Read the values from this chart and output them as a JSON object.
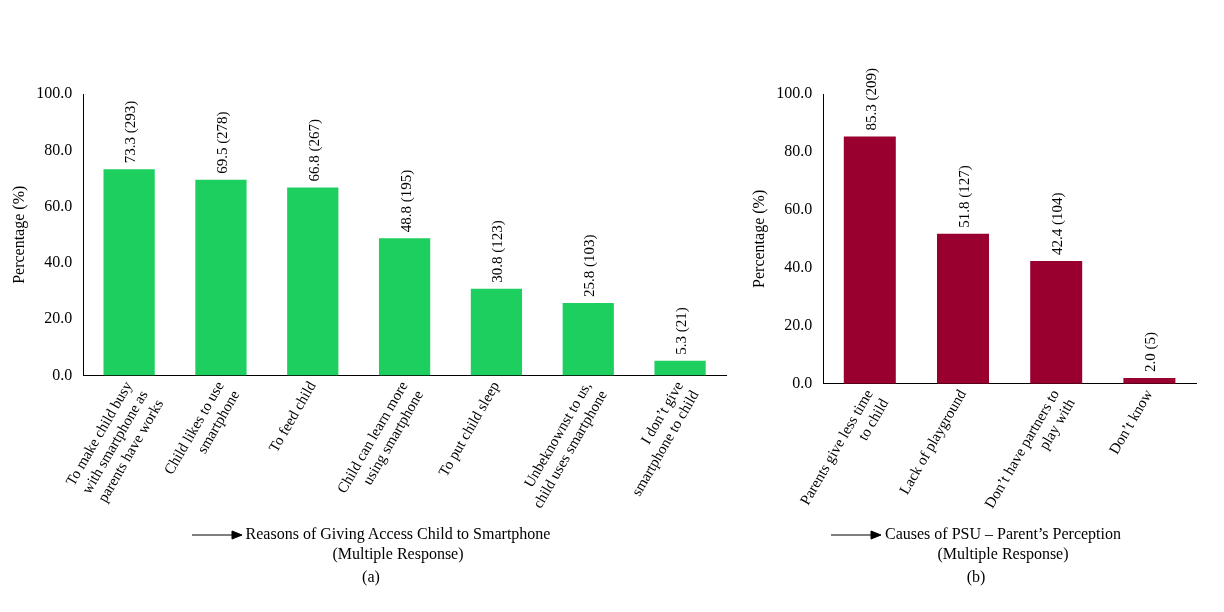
{
  "chart_data": [
    {
      "type": "bar",
      "xlabel": "Reasons of Giving Access Child to Smartphone (Multiple Response)",
      "ylabel": "Percentage (%)",
      "categories": [
        "To make child busy with smartphone as parents have works",
        "Child likes to use smartphone",
        "To feed child",
        "Child can learn more using smartphone",
        "To put child sleep",
        "Unbeknownst to us, child uses smartphone",
        "I don’t give smartphone to child"
      ],
      "values": [
        73.3,
        69.5,
        66.8,
        48.8,
        30.8,
        25.8,
        5.3
      ],
      "value_labels": [
        "73.3 (293)",
        "69.5 (278)",
        "66.8 (267)",
        "48.8 (195)",
        "30.8 (123)",
        "25.8 (103)",
        "5.3 (21)"
      ],
      "color": "#1ccf5e",
      "ylim": [
        0,
        100
      ],
      "yticks": [
        {
          "value": 0,
          "label": "0.0"
        },
        {
          "value": 20,
          "label": "20.0"
        },
        {
          "value": 40,
          "label": "40.0"
        },
        {
          "value": 60,
          "label": "60.0"
        },
        {
          "value": 80,
          "label": "80.0"
        },
        {
          "value": 100,
          "label": "100.0"
        }
      ],
      "grid": false,
      "legend": false,
      "annotations": [
        "(a)"
      ]
    },
    {
      "type": "bar",
      "xlabel": "Causes of PSU – Parent’s Perception (Multiple Response)",
      "ylabel": "Percentage (%)",
      "categories": [
        "Parents give less time to child",
        "Lack of playground",
        "Don’t have partners to play with",
        "Don’t know"
      ],
      "values": [
        85.3,
        51.8,
        42.4,
        2.0
      ],
      "value_labels": [
        "85.3 (209)",
        "51.8 (127)",
        "42.4 (104)",
        "2.0 (5)"
      ],
      "color": "#99002f",
      "ylim": [
        0,
        100
      ],
      "yticks": [
        {
          "value": 0,
          "label": "0.0"
        },
        {
          "value": 20,
          "label": "20.0"
        },
        {
          "value": 40,
          "label": "40.0"
        },
        {
          "value": 60,
          "label": "60.0"
        },
        {
          "value": 80,
          "label": "80.0"
        },
        {
          "value": 100,
          "label": "100.0"
        }
      ],
      "grid": false,
      "legend": false,
      "annotations": [
        "(b)"
      ]
    }
  ]
}
